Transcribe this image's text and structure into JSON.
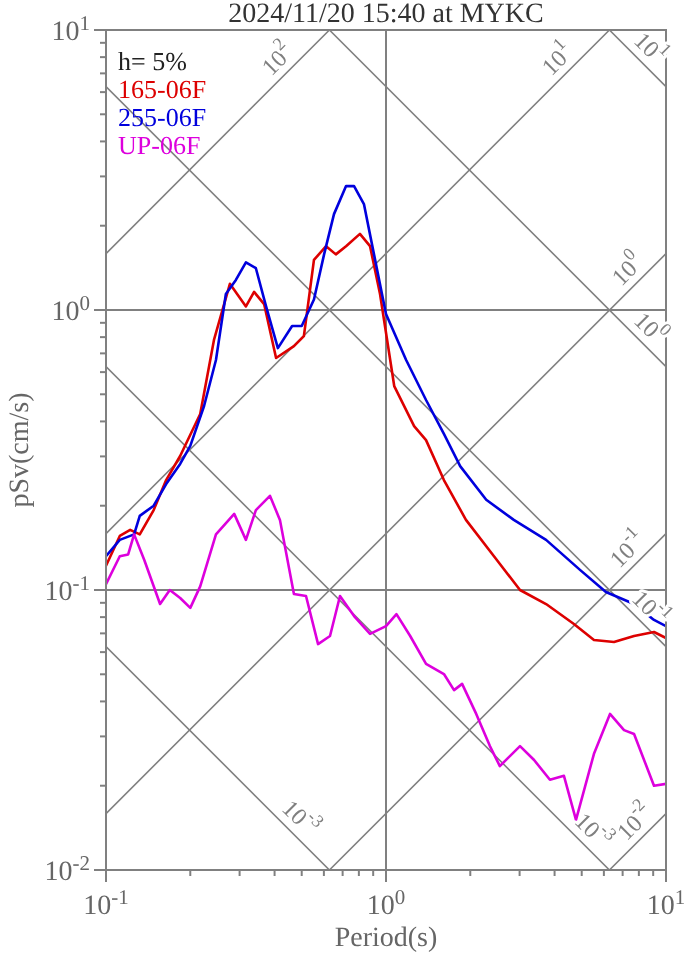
{
  "chart_data": {
    "type": "line",
    "title": "2024/11/20 15:40 at MYKC",
    "xlabel": "Period(s)",
    "ylabel": "pSv(cm/s)",
    "log": "xy",
    "grid": true,
    "legend": "top left",
    "xlim": [
      0.1,
      10
    ],
    "ylim": [
      0.01,
      10
    ],
    "xticks": [
      {
        "value": 0.1,
        "label": "10$^{-1}$"
      },
      {
        "value": 0.2,
        "label": null
      },
      {
        "value": 0.3,
        "label": null
      },
      {
        "value": 0.4,
        "label": null
      },
      {
        "value": 0.5,
        "label": null
      },
      {
        "value": 0.6,
        "label": null
      },
      {
        "value": 0.7,
        "label": null
      },
      {
        "value": 0.8,
        "label": null
      },
      {
        "value": 0.9,
        "label": null
      },
      {
        "value": 1,
        "label": "10$^{0}$"
      },
      {
        "value": 2,
        "label": null
      },
      {
        "value": 3,
        "label": null
      },
      {
        "value": 4,
        "label": null
      },
      {
        "value": 5,
        "label": null
      },
      {
        "value": 6,
        "label": null
      },
      {
        "value": 7,
        "label": null
      },
      {
        "value": 8,
        "label": null
      },
      {
        "value": 9,
        "label": null
      },
      {
        "value": 10,
        "label": "10$^{1}$"
      }
    ],
    "yticks": [
      {
        "value": 0.01,
        "label": "10$^{-2}$"
      },
      {
        "value": 0.02,
        "label": null
      },
      {
        "value": 0.03,
        "label": null
      },
      {
        "value": 0.04,
        "label": null
      },
      {
        "value": 0.05,
        "label": null
      },
      {
        "value": 0.06,
        "label": null
      },
      {
        "value": 0.07,
        "label": null
      },
      {
        "value": 0.08,
        "label": null
      },
      {
        "value": 0.09,
        "label": null
      },
      {
        "value": 0.1,
        "label": "10$^{-1}$"
      },
      {
        "value": 0.2,
        "label": null
      },
      {
        "value": 0.3,
        "label": null
      },
      {
        "value": 0.4,
        "label": null
      },
      {
        "value": 0.5,
        "label": null
      },
      {
        "value": 0.6,
        "label": null
      },
      {
        "value": 0.7,
        "label": null
      },
      {
        "value": 0.8,
        "label": null
      },
      {
        "value": 0.9,
        "label": null
      },
      {
        "value": 1,
        "label": "10$^{0}$"
      },
      {
        "value": 2,
        "label": null
      },
      {
        "value": 3,
        "label": null
      },
      {
        "value": 4,
        "label": null
      },
      {
        "value": 5,
        "label": null
      },
      {
        "value": 6,
        "label": null
      },
      {
        "value": 7,
        "label": null
      },
      {
        "value": 8,
        "label": null
      },
      {
        "value": 9,
        "label": null
      },
      {
        "value": 10,
        "label": "10$^{1}$"
      }
    ],
    "series": [
      {
        "color": "#808080",
        "x": [
          6.28,
          10
        ],
        "values": [
          10,
          6.28
        ]
      },
      {
        "color": "#808080",
        "x": [
          0.628,
          10
        ],
        "values": [
          10,
          0.628
        ]
      },
      {
        "color": "#808080",
        "x": [
          0.1,
          10
        ],
        "values": [
          6.28,
          0.0628
        ]
      },
      {
        "color": "#808080",
        "x": [
          0.1,
          6.28
        ],
        "values": [
          0.628,
          0.01
        ]
      },
      {
        "color": "#808080",
        "x": [
          0.1,
          0.628
        ],
        "values": [
          0.0628,
          0.01
        ]
      },
      {
        "color": "#808080",
        "x": [
          0.1,
          0.628
        ],
        "values": [
          1.59,
          10
        ]
      },
      {
        "color": "#808080",
        "x": [
          0.1,
          6.28
        ],
        "values": [
          0.159,
          10
        ]
      },
      {
        "color": "#808080",
        "x": [
          0.1,
          10
        ],
        "values": [
          0.0159,
          1.59
        ]
      },
      {
        "color": "#808080",
        "x": [
          0.628,
          10
        ],
        "values": [
          0.01,
          0.159
        ]
      },
      {
        "color": "#808080",
        "x": [
          6.28,
          10
        ],
        "values": [
          0.01,
          0.0159
        ]
      },
      {
        "name": "165-06F",
        "color": "#dd0000",
        "x": [
          0.1,
          0.112,
          0.122,
          0.132,
          0.148,
          0.164,
          0.184,
          0.217,
          0.243,
          0.277,
          0.316,
          0.338,
          0.367,
          0.405,
          0.469,
          0.509,
          0.553,
          0.611,
          0.662,
          0.72,
          0.807,
          0.877,
          0.952,
          1.07,
          1.26,
          1.39,
          1.61,
          1.93,
          2.43,
          3.01,
          3.73,
          4.69,
          5.53,
          6.52,
          7.69,
          9.06,
          10
        ],
        "values": [
          0.122,
          0.156,
          0.164,
          0.158,
          0.193,
          0.247,
          0.301,
          0.425,
          0.782,
          1.24,
          1.03,
          1.16,
          1.05,
          0.674,
          0.743,
          0.807,
          1.51,
          1.69,
          1.58,
          1.69,
          1.87,
          1.69,
          1.14,
          0.535,
          0.385,
          0.343,
          0.247,
          0.178,
          0.132,
          0.1,
          0.0891,
          0.0756,
          0.0663,
          0.0652,
          0.0685,
          0.0708,
          0.0674
        ]
      },
      {
        "name": "255-06F",
        "color": "#0000dd",
        "x": [
          0.1,
          0.112,
          0.126,
          0.132,
          0.148,
          0.164,
          0.184,
          0.2,
          0.224,
          0.247,
          0.268,
          0.291,
          0.316,
          0.343,
          0.373,
          0.411,
          0.462,
          0.5,
          0.553,
          0.601,
          0.652,
          0.72,
          0.769,
          0.834,
          0.906,
          1.0,
          1.18,
          1.39,
          1.61,
          1.84,
          2.28,
          2.86,
          3.73,
          4.93,
          6.1,
          7.69,
          9.06,
          10
        ],
        "values": [
          0.132,
          0.151,
          0.158,
          0.184,
          0.2,
          0.239,
          0.282,
          0.327,
          0.454,
          0.663,
          1.14,
          1.28,
          1.48,
          1.41,
          1.03,
          0.731,
          0.877,
          0.877,
          1.09,
          1.58,
          2.2,
          2.77,
          2.77,
          2.39,
          1.58,
          0.968,
          0.663,
          0.477,
          0.361,
          0.277,
          0.21,
          0.178,
          0.151,
          0.118,
          0.0984,
          0.0891,
          0.0782,
          0.0743
        ]
      },
      {
        "name": "UP-06F",
        "color": "#dd00dd",
        "x": [
          0.1,
          0.112,
          0.12,
          0.126,
          0.137,
          0.156,
          0.169,
          0.184,
          0.2,
          0.217,
          0.247,
          0.287,
          0.316,
          0.343,
          0.385,
          0.418,
          0.469,
          0.518,
          0.572,
          0.631,
          0.685,
          0.769,
          0.877,
          1.0,
          1.09,
          1.22,
          1.39,
          1.61,
          1.75,
          1.87,
          2.1,
          2.35,
          2.55,
          3.01,
          3.38,
          3.85,
          4.32,
          4.77,
          5.53,
          6.31,
          7.08,
          7.69,
          9.06,
          10
        ],
        "values": [
          0.105,
          0.132,
          0.134,
          0.158,
          0.128,
          0.0891,
          0.1,
          0.0936,
          0.0863,
          0.103,
          0.158,
          0.187,
          0.151,
          0.193,
          0.217,
          0.178,
          0.0968,
          0.0952,
          0.0641,
          0.0685,
          0.0952,
          0.0807,
          0.0697,
          0.0743,
          0.082,
          0.0685,
          0.0545,
          0.0501,
          0.0439,
          0.0462,
          0.0361,
          0.0277,
          0.0235,
          0.0277,
          0.0247,
          0.021,
          0.0217,
          0.0151,
          0.026,
          0.0361,
          0.0316,
          0.0306,
          0.02,
          0.0203
        ]
      }
    ],
    "annotations": [
      "h= 5%",
      {
        "text": "10$^{2}$",
        "x": 0.45,
        "y": 7.16
      },
      {
        "text": "10$^{1}$",
        "x": 4.5,
        "y": 7.16
      },
      {
        "text": "10$^{1}$",
        "x": 8,
        "y": 7.85
      },
      {
        "text": "10$^{0}$",
        "x": 8,
        "y": 1.27
      },
      {
        "text": "10$^{0}$",
        "x": 8,
        "y": 0.785
      },
      {
        "text": "10$^{-1}$",
        "x": 8,
        "y": 0.127
      },
      {
        "text": "10$^{-1}$",
        "x": 8,
        "y": 0.0785
      },
      {
        "text": "10$^{-2}$",
        "x": 8.5,
        "y": 0.0135
      },
      {
        "text": "10$^{-3}$",
        "x": 5,
        "y": 0.0126
      },
      {
        "text": "10$^{-3}$",
        "x": 0.45,
        "y": 0.014
      }
    ]
  }
}
